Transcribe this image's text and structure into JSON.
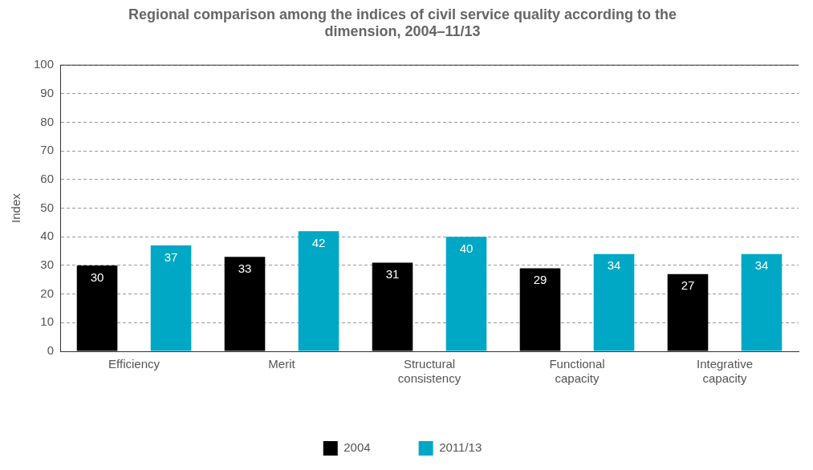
{
  "chart_data": {
    "type": "bar",
    "title": "Regional comparison among the indices of civil service quality according to the dimension, 2004–11/13",
    "ylabel": "Index",
    "categories": [
      "Efficiency",
      "Merit",
      "Structural consistency",
      "Functional capacity",
      "Integrative capacity"
    ],
    "series": [
      {
        "name": "2004",
        "color": "#000000",
        "values": [
          30,
          33,
          31,
          29,
          27
        ]
      },
      {
        "name": "2011/13",
        "color": "#00a8c6",
        "values": [
          37,
          42,
          40,
          34,
          34
        ]
      }
    ],
    "ylim": [
      0,
      100
    ],
    "yticks": [
      0,
      10,
      20,
      30,
      40,
      50,
      60,
      70,
      80,
      90,
      100
    ],
    "grid": "y",
    "legend": "bottom",
    "data_labels": true
  }
}
